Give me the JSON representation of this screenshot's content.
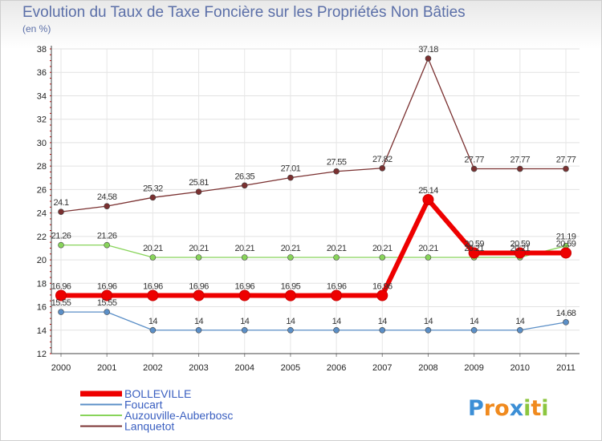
{
  "chart_data": {
    "type": "line",
    "title": "Evolution du Taux de Taxe Foncière sur les Propriétés Non Bâties",
    "ylabel": "(en %)",
    "xlabel": "",
    "categories": [
      "2000",
      "2001",
      "2002",
      "2003",
      "2004",
      "2005",
      "2006",
      "2007",
      "2008",
      "2009",
      "2010",
      "2011"
    ],
    "ylim": [
      12,
      38
    ],
    "yticks": [
      12,
      14,
      16,
      18,
      20,
      22,
      24,
      26,
      28,
      30,
      32,
      34,
      36,
      38
    ],
    "series": [
      {
        "name": "BOLLEVILLE",
        "color": "#ee0000",
        "values": [
          16.96,
          16.96,
          16.96,
          16.96,
          16.96,
          16.95,
          16.96,
          16.96,
          25.14,
          20.59,
          20.59,
          20.59
        ],
        "labels": [
          "16.96",
          "16.96",
          "16.96",
          "16.96",
          "16.96",
          "16.95",
          "16.96",
          "16.96",
          "25.14",
          "20.59",
          "20.59",
          "20.59"
        ]
      },
      {
        "name": "Foucart",
        "color": "#5b8fc7",
        "values": [
          15.55,
          15.55,
          14,
          14,
          14,
          14,
          14,
          14,
          14,
          14,
          14,
          14.68
        ],
        "labels": [
          "15.55",
          "15.55",
          "14",
          "14",
          "14",
          "14",
          "14",
          "14",
          "14",
          "14",
          "14",
          "14.68"
        ]
      },
      {
        "name": "Auzouville-Auberbosc",
        "color": "#88d45a",
        "values": [
          21.26,
          21.26,
          20.21,
          20.21,
          20.21,
          20.21,
          20.21,
          20.21,
          20.21,
          20.21,
          20.21,
          21.19
        ],
        "labels": [
          "21.26",
          "21.26",
          "20.21",
          "20.21",
          "20.21",
          "20.21",
          "20.21",
          "20.21",
          "20.21",
          "20.21",
          "20.21",
          "21.19"
        ]
      },
      {
        "name": "Lanquetot",
        "color": "#7a3030",
        "values": [
          24.1,
          24.58,
          25.32,
          25.81,
          26.35,
          27.01,
          27.55,
          27.82,
          37.18,
          27.77,
          27.77,
          27.77
        ],
        "labels": [
          "24.1",
          "24.58",
          "25.32",
          "25.81",
          "26.35",
          "27.01",
          "27.55",
          "27.82",
          "37.18",
          "27.77",
          "27.77",
          "27.77"
        ]
      }
    ],
    "legend": "bottom-left"
  },
  "logo": {
    "text": "Proxiti",
    "letters": [
      "P",
      "r",
      "o",
      "x",
      "i",
      "t",
      "i"
    ],
    "colors": [
      "#3c8fd6",
      "#f08a1e",
      "#f08a1e",
      "#3c8fd6",
      "#8cc63f",
      "#f08a1e",
      "#8cc63f"
    ]
  }
}
